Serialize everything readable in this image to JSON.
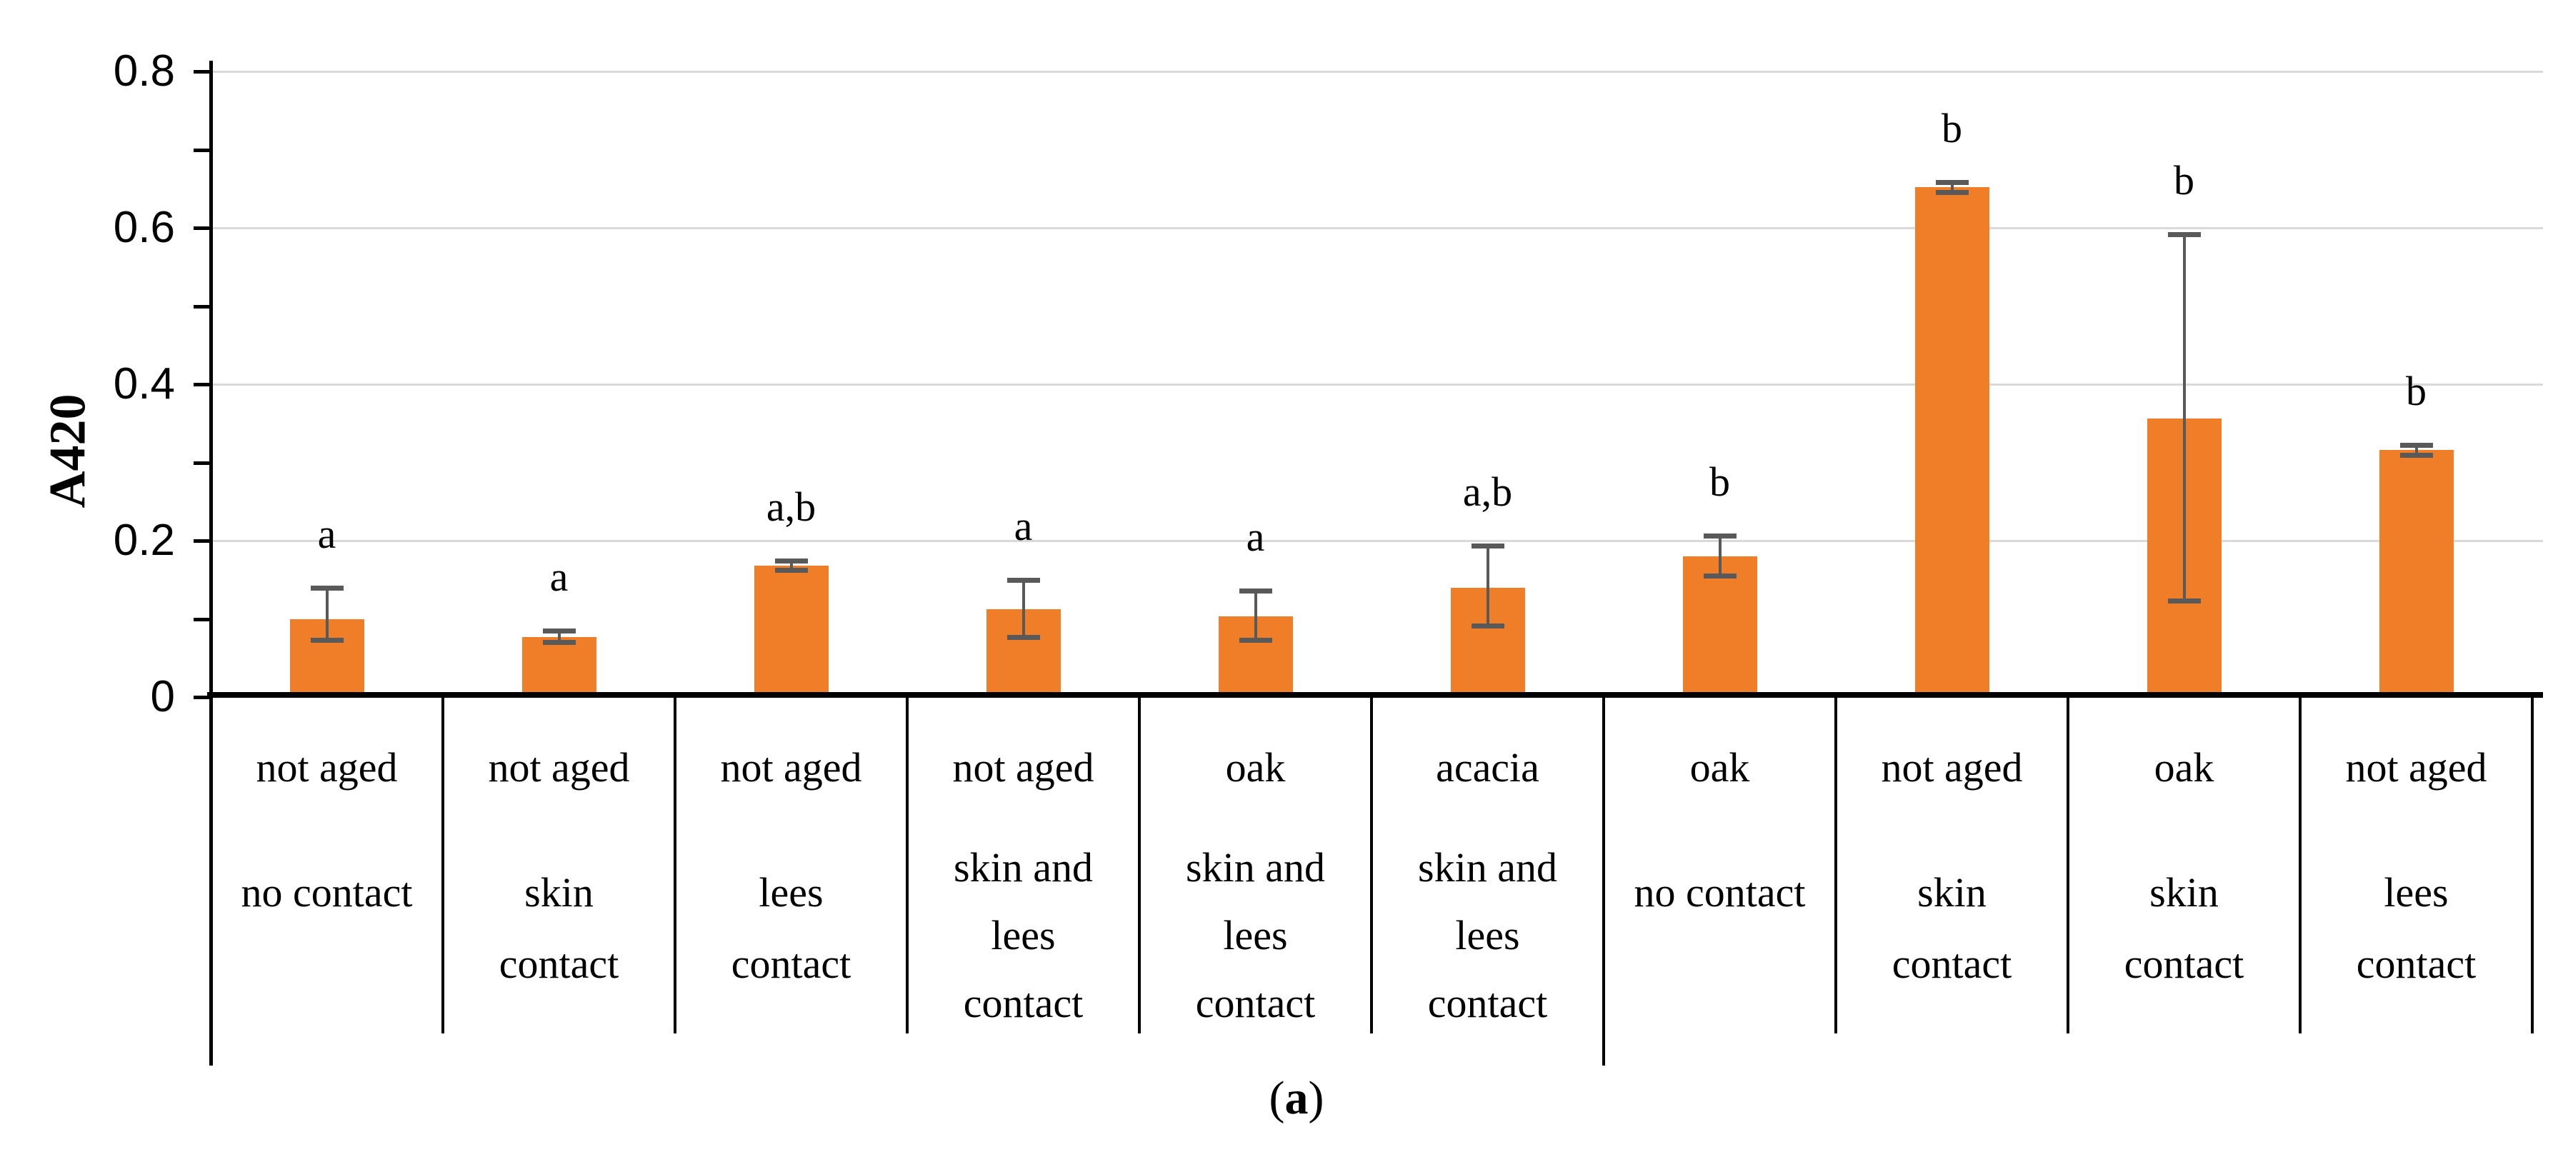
{
  "figure": {
    "caption_open": "(",
    "caption_letter": "a",
    "caption_close": ")"
  },
  "chart_data": {
    "type": "bar",
    "title": "",
    "ylabel": "A420",
    "xlabel": "",
    "ylim": [
      0,
      0.8
    ],
    "ytick_values": [
      0,
      0.2,
      0.4,
      0.6,
      0.8
    ],
    "ytick_labels": [
      "0",
      "0.2",
      "0.4",
      "0.6",
      "0.8"
    ],
    "minor_tick_step": 0.1,
    "grid": "horizontal",
    "legend": "none",
    "bar_color": "#f07d28",
    "error_bar_color": "#595959",
    "gridline_color": "#d9d9d9",
    "group_separator_after_category": 6,
    "categories": [
      {
        "aging": "not aged",
        "contact": "no contact",
        "contact_lines": [
          "no contact"
        ],
        "value": 0.1,
        "err_low": 0.073,
        "err_high": 0.14,
        "significance": "a"
      },
      {
        "aging": "not aged",
        "contact": "skin contact",
        "contact_lines": [
          "skin",
          "contact"
        ],
        "value": 0.077,
        "err_low": 0.07,
        "err_high": 0.085,
        "significance": "a"
      },
      {
        "aging": "not aged",
        "contact": "lees contact",
        "contact_lines": [
          "lees",
          "contact"
        ],
        "value": 0.168,
        "err_low": 0.163,
        "err_high": 0.174,
        "significance": "a,b"
      },
      {
        "aging": "not aged",
        "contact": "skin and lees contact",
        "contact_lines": [
          "skin and",
          "lees",
          "contact"
        ],
        "value": 0.112,
        "err_low": 0.077,
        "err_high": 0.15,
        "significance": "a"
      },
      {
        "aging": "oak",
        "contact": "skin and lees contact",
        "contact_lines": [
          "skin and",
          "lees",
          "contact"
        ],
        "value": 0.103,
        "err_low": 0.073,
        "err_high": 0.136,
        "significance": "a"
      },
      {
        "aging": "acacia",
        "contact": "skin and lees contact",
        "contact_lines": [
          "skin and",
          "lees",
          "contact"
        ],
        "value": 0.14,
        "err_low": 0.091,
        "err_high": 0.194,
        "significance": "a,b"
      },
      {
        "aging": "oak",
        "contact": "no contact",
        "contact_lines": [
          "no contact"
        ],
        "value": 0.18,
        "err_low": 0.155,
        "err_high": 0.206,
        "significance": "b"
      },
      {
        "aging": "not aged",
        "contact": "skin contact",
        "contact_lines": [
          "skin",
          "contact"
        ],
        "value": 0.652,
        "err_low": 0.646,
        "err_high": 0.658,
        "significance": "b"
      },
      {
        "aging": "oak",
        "contact": "skin contact",
        "contact_lines": [
          "skin",
          "contact"
        ],
        "value": 0.356,
        "err_low": 0.123,
        "err_high": 0.592,
        "significance": "b"
      },
      {
        "aging": "not aged",
        "contact": "lees contact",
        "contact_lines": [
          "lees",
          "contact"
        ],
        "value": 0.316,
        "err_low": 0.31,
        "err_high": 0.322,
        "significance": "b"
      }
    ]
  }
}
